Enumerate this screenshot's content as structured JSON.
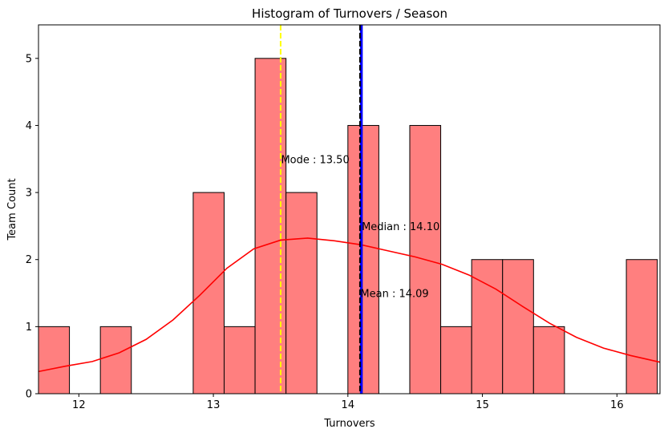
{
  "chart_data": {
    "type": "bar",
    "title": "Histogram of Turnovers / Season",
    "xlabel": "Turnovers",
    "ylabel": "Team Count",
    "xlim": [
      11.7,
      16.32
    ],
    "ylim": [
      0,
      5.5
    ],
    "xticks": [
      12,
      13,
      14,
      15,
      16
    ],
    "yticks": [
      0,
      1,
      2,
      3,
      4,
      5
    ],
    "grid": false,
    "bins": [
      {
        "x0": 11.7,
        "x1": 11.93,
        "count": 1
      },
      {
        "x0": 12.16,
        "x1": 12.39,
        "count": 1
      },
      {
        "x0": 12.85,
        "x1": 13.08,
        "count": 3
      },
      {
        "x0": 13.08,
        "x1": 13.31,
        "count": 1
      },
      {
        "x0": 13.31,
        "x1": 13.54,
        "count": 5
      },
      {
        "x0": 13.54,
        "x1": 13.77,
        "count": 3
      },
      {
        "x0": 14.0,
        "x1": 14.23,
        "count": 4
      },
      {
        "x0": 14.46,
        "x1": 14.69,
        "count": 4
      },
      {
        "x0": 14.69,
        "x1": 14.92,
        "count": 1
      },
      {
        "x0": 14.92,
        "x1": 15.15,
        "count": 2
      },
      {
        "x0": 15.15,
        "x1": 15.38,
        "count": 2
      },
      {
        "x0": 15.38,
        "x1": 15.61,
        "count": 1
      },
      {
        "x0": 16.07,
        "x1": 16.3,
        "count": 2
      }
    ],
    "kde": {
      "x": [
        11.7,
        11.9,
        12.1,
        12.3,
        12.5,
        12.7,
        12.9,
        13.1,
        13.3,
        13.5,
        13.7,
        13.9,
        14.1,
        14.3,
        14.5,
        14.7,
        14.9,
        15.1,
        15.3,
        15.5,
        15.7,
        15.9,
        16.1,
        16.32
      ],
      "y": [
        0.33,
        0.41,
        0.48,
        0.61,
        0.81,
        1.1,
        1.47,
        1.87,
        2.16,
        2.29,
        2.32,
        2.28,
        2.22,
        2.13,
        2.04,
        1.93,
        1.77,
        1.56,
        1.3,
        1.05,
        0.84,
        0.68,
        0.57,
        0.47
      ]
    },
    "vlines": [
      {
        "name": "mode",
        "x": 13.5,
        "color": "#ffff00",
        "style": "dashed"
      },
      {
        "name": "median",
        "x": 14.1,
        "color": "#0000ff",
        "style": "solid"
      },
      {
        "name": "mean",
        "x": 14.09,
        "color": "#000000",
        "style": "dashed"
      }
    ],
    "annotations": [
      {
        "text": "Mode : 13.50",
        "x": 13.5,
        "y": 3.5
      },
      {
        "text": "Median : 14.10",
        "x": 14.1,
        "y": 2.5
      },
      {
        "text": "Mean : 14.09",
        "x": 14.09,
        "y": 1.5
      }
    ],
    "colors": {
      "bar_fill": "#ff7f7f",
      "bar_edge": "#000000",
      "kde_line": "#ff0000"
    }
  }
}
